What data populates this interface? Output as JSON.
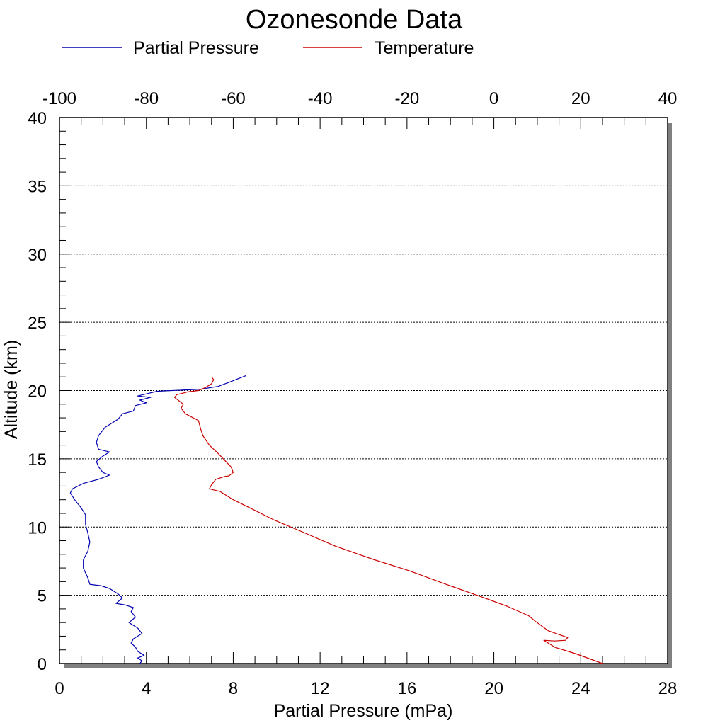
{
  "chart_data": {
    "type": "line",
    "title": "Ozonesonde Data",
    "xlabel": "Partial Pressure (mPa)",
    "ylabel": "Altitude (km)",
    "x_bottom": {
      "lim": [
        0,
        28
      ],
      "ticks": [
        0,
        4,
        8,
        12,
        16,
        20,
        24,
        28
      ]
    },
    "x_top": {
      "lim": [
        -100,
        40
      ],
      "ticks": [
        -100,
        -80,
        -60,
        -40,
        -20,
        0,
        20,
        40
      ]
    },
    "y": {
      "lim": [
        0,
        40
      ],
      "ticks": [
        0,
        5,
        10,
        15,
        20,
        25,
        30,
        35,
        40
      ]
    },
    "grid": "horizontal dotted",
    "legend_position": "top",
    "series": [
      {
        "name": "Partial Pressure",
        "axis": "bottom",
        "color": "#0000b0",
        "points": [
          [
            3.7,
            0.0
          ],
          [
            3.8,
            0.2
          ],
          [
            3.6,
            0.4
          ],
          [
            3.9,
            0.6
          ],
          [
            3.6,
            0.9
          ],
          [
            3.5,
            1.2
          ],
          [
            3.3,
            1.5
          ],
          [
            3.4,
            1.8
          ],
          [
            3.8,
            2.2
          ],
          [
            3.6,
            2.6
          ],
          [
            3.2,
            3.0
          ],
          [
            3.5,
            3.4
          ],
          [
            3.3,
            3.8
          ],
          [
            3.4,
            4.1
          ],
          [
            3.0,
            4.3
          ],
          [
            2.6,
            4.4
          ],
          [
            2.9,
            4.8
          ],
          [
            2.7,
            5.1
          ],
          [
            2.3,
            5.5
          ],
          [
            1.9,
            5.7
          ],
          [
            1.4,
            5.8
          ],
          [
            1.3,
            6.3
          ],
          [
            1.1,
            7.0
          ],
          [
            1.1,
            7.6
          ],
          [
            1.3,
            8.2
          ],
          [
            1.4,
            8.9
          ],
          [
            1.3,
            9.6
          ],
          [
            1.2,
            10.2
          ],
          [
            1.2,
            10.9
          ],
          [
            1.0,
            11.4
          ],
          [
            0.7,
            12.0
          ],
          [
            0.5,
            12.5
          ],
          [
            0.6,
            12.8
          ],
          [
            1.1,
            13.2
          ],
          [
            1.8,
            13.5
          ],
          [
            2.3,
            13.8
          ],
          [
            2.0,
            14.0
          ],
          [
            1.8,
            14.4
          ],
          [
            1.7,
            14.8
          ],
          [
            2.0,
            15.2
          ],
          [
            2.3,
            15.5
          ],
          [
            1.8,
            15.7
          ],
          [
            1.7,
            16.2
          ],
          [
            1.8,
            16.7
          ],
          [
            2.1,
            17.3
          ],
          [
            2.7,
            17.9
          ],
          [
            2.9,
            18.3
          ],
          [
            3.4,
            18.5
          ],
          [
            3.5,
            18.9
          ],
          [
            4.0,
            19.1
          ],
          [
            3.7,
            19.3
          ],
          [
            4.2,
            19.5
          ],
          [
            3.6,
            19.6
          ],
          [
            4.1,
            19.8
          ],
          [
            4.5,
            19.95
          ],
          [
            6.5,
            20.1
          ],
          [
            7.3,
            20.3
          ],
          [
            7.8,
            20.6
          ],
          [
            8.2,
            20.85
          ],
          [
            8.6,
            21.1
          ]
        ]
      },
      {
        "name": "Temperature",
        "axis": "top",
        "color": "#cc0000",
        "points": [
          [
            25.0,
            0.0
          ],
          [
            23.8,
            0.7
          ],
          [
            22.8,
            1.2
          ],
          [
            22.5,
            1.5
          ],
          [
            22.3,
            1.7
          ],
          [
            22.8,
            1.65
          ],
          [
            23.3,
            1.7
          ],
          [
            23.4,
            1.9
          ],
          [
            22.5,
            2.4
          ],
          [
            21.9,
            3.1
          ],
          [
            21.6,
            3.5
          ],
          [
            20.6,
            4.2
          ],
          [
            19.4,
            4.9
          ],
          [
            17.8,
            5.8
          ],
          [
            16.1,
            6.8
          ],
          [
            14.5,
            7.6
          ],
          [
            12.7,
            8.6
          ],
          [
            11.1,
            9.7
          ],
          [
            9.9,
            10.5
          ],
          [
            8.9,
            11.3
          ],
          [
            8.0,
            12.0
          ],
          [
            7.4,
            12.6
          ],
          [
            6.9,
            12.8
          ],
          [
            7.0,
            13.1
          ],
          [
            7.2,
            13.5
          ],
          [
            7.6,
            13.7
          ],
          [
            7.8,
            13.75
          ],
          [
            8.0,
            14.0
          ],
          [
            7.9,
            14.4
          ],
          [
            7.6,
            14.9
          ],
          [
            7.3,
            15.4
          ],
          [
            6.9,
            16.0
          ],
          [
            6.6,
            16.7
          ],
          [
            6.5,
            17.2
          ],
          [
            6.4,
            17.8
          ],
          [
            5.8,
            18.3
          ],
          [
            5.6,
            18.7
          ],
          [
            5.7,
            19.0
          ],
          [
            5.3,
            19.5
          ],
          [
            5.4,
            19.7
          ],
          [
            5.9,
            19.9
          ],
          [
            6.4,
            20.0
          ],
          [
            6.7,
            20.2
          ],
          [
            7.0,
            20.5
          ],
          [
            7.1,
            20.8
          ],
          [
            7.0,
            21.0
          ]
        ]
      }
    ]
  },
  "colors": {
    "frame": "#000000",
    "shadow": "#808080",
    "grid": "#000000"
  }
}
